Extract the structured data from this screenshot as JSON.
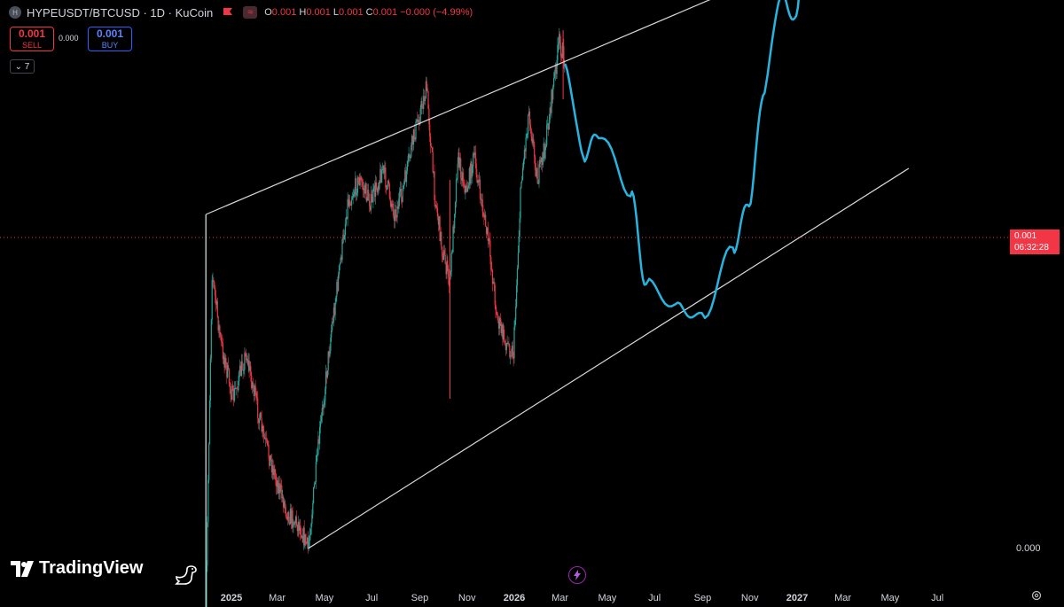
{
  "header": {
    "symbol_badge": "H",
    "title": "HYPEUSDT/BTCUSD · 1D · KuCoin",
    "wave_glyph": "≈",
    "ohlc": {
      "o_label": "O",
      "o_value": "0.001",
      "h_label": "H",
      "h_value": "0.001",
      "l_label": "L",
      "l_value": "0.001",
      "c_label": "C",
      "c_value": "0.001",
      "change": "−0.000 (−4.99%)"
    }
  },
  "trade": {
    "sell_price": "0.001",
    "sell_label": "SELL",
    "spread": "0.000",
    "buy_price": "0.001",
    "buy_label": "BUY"
  },
  "indicators_toggle": {
    "glyph": "⌄",
    "count": "7"
  },
  "price_scale": {
    "last_price": "0.001",
    "countdown": "06:32:28",
    "zero_label": "0.000"
  },
  "brand": {
    "name": "TradingView"
  },
  "icons": {
    "bolt": "lightning-icon",
    "gear": "gear-icon",
    "dino": "dinosaur-icon"
  },
  "colors": {
    "background": "#000000",
    "up": "#26a69a",
    "down": "#f23645",
    "projection": "#27b5e0",
    "channel": "#d9d9d9",
    "price_line": "#f23645"
  },
  "chart_data": {
    "type": "line",
    "description_type": "candlestick with drawn ascending channel and projected path",
    "x_axis_labels": [
      "2025",
      "Mar",
      "May",
      "Jul",
      "Sep",
      "Nov",
      "2026",
      "Mar",
      "May",
      "Jul",
      "Sep",
      "Nov",
      "2027",
      "Mar",
      "May",
      "Jul"
    ],
    "y_axis_labels": [
      "0.000"
    ],
    "last_price": 0.001,
    "grid": false,
    "price_series_note": "HYPEUSDT/BTCUSD daily, prices in BTC",
    "ohlc_last": {
      "open": 0.001,
      "high": 0.001,
      "low": 0.001,
      "close": 0.001,
      "change_pct": -4.99
    },
    "series": [
      {
        "kind": "historical",
        "points": [
          [
            "2024-11-29",
            0.00028
          ],
          [
            "2024-12-02",
            0.0004
          ],
          [
            "2024-12-07",
            0.00058
          ],
          [
            "2024-12-18",
            0.00052
          ],
          [
            "2025-01-03",
            0.00047
          ],
          [
            "2025-01-20",
            0.00051
          ],
          [
            "2025-02-10",
            0.00044
          ],
          [
            "2025-02-28",
            0.0004
          ],
          [
            "2025-03-15",
            0.00037
          ],
          [
            "2025-03-30",
            0.00036
          ],
          [
            "2025-04-10",
            0.00034
          ],
          [
            "2025-04-25",
            0.00044
          ],
          [
            "2025-05-10",
            0.00053
          ],
          [
            "2025-05-20",
            0.00058
          ],
          [
            "2025-05-31",
            0.00064
          ],
          [
            "2025-06-15",
            0.00066
          ],
          [
            "2025-06-30",
            0.00064
          ],
          [
            "2025-07-15",
            0.00067
          ],
          [
            "2025-07-31",
            0.00063
          ],
          [
            "2025-08-10",
            0.00065
          ],
          [
            "2025-08-25",
            0.0007
          ],
          [
            "2025-09-10",
            0.00074
          ],
          [
            "2025-09-20",
            0.00065
          ],
          [
            "2025-09-30",
            0.0006
          ],
          [
            "2025-10-10",
            0.00057
          ],
          [
            "2025-10-20",
            0.00068
          ],
          [
            "2025-10-31",
            0.00065
          ],
          [
            "2025-11-10",
            0.00068
          ],
          [
            "2025-11-20",
            0.00064
          ],
          [
            "2025-11-30",
            0.0006
          ],
          [
            "2025-12-10",
            0.00054
          ],
          [
            "2025-12-20",
            0.00052
          ],
          [
            "2025-12-31",
            0.00051
          ],
          [
            "2026-01-10",
            0.00066
          ],
          [
            "2026-01-20",
            0.00072
          ],
          [
            "2026-01-31",
            0.00066
          ],
          [
            "2026-02-10",
            0.00069
          ],
          [
            "2026-02-20",
            0.00074
          ],
          [
            "2026-02-28",
            0.00078
          ],
          [
            "2026-03-08",
            0.00076
          ]
        ]
      },
      {
        "kind": "projection",
        "points": [
          [
            "2026-03-08",
            0.00076
          ],
          [
            "2026-03-31",
            0.00068
          ],
          [
            "2026-04-20",
            0.0007
          ],
          [
            "2026-05-31",
            0.00065
          ],
          [
            "2026-06-20",
            0.00057
          ],
          [
            "2026-07-31",
            0.00055
          ],
          [
            "2026-08-31",
            0.00054
          ],
          [
            "2026-10-10",
            0.0006
          ],
          [
            "2026-10-31",
            0.00064
          ],
          [
            "2026-11-20",
            0.00074
          ],
          [
            "2026-12-10",
            0.00082
          ],
          [
            "2026-12-31",
            0.0008
          ],
          [
            "2027-01-20",
            0.00102
          ]
        ]
      }
    ],
    "annotations": [
      {
        "type": "channel-upper",
        "from": [
          "2024-11-29",
          0.00063
        ],
        "to": [
          "2027-05-25",
          0.00089
        ]
      },
      {
        "type": "channel-lower",
        "from": [
          "2025-04-10",
          0.00034
        ],
        "to": [
          "2027-05-25",
          0.00067
        ]
      },
      {
        "type": "channel-left-edge",
        "from": [
          "2024-11-29",
          0.00063
        ],
        "to": [
          "2024-11-29",
          0.00028
        ]
      }
    ]
  }
}
